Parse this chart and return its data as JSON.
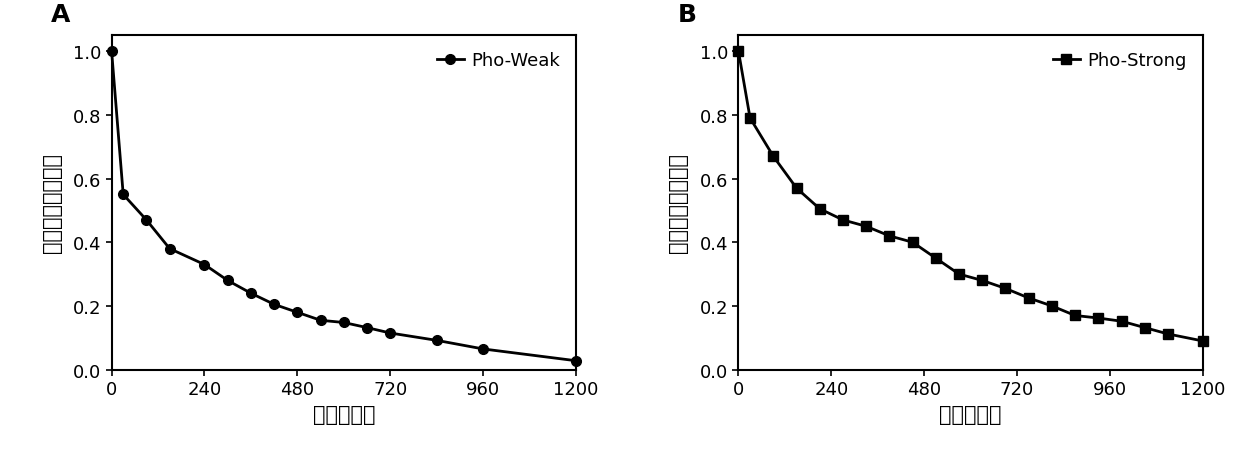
{
  "panel_A": {
    "label": "A",
    "legend": "Pho-Weak",
    "x": [
      0,
      30,
      90,
      150,
      240,
      300,
      360,
      420,
      480,
      540,
      600,
      660,
      720,
      840,
      960,
      1200
    ],
    "y": [
      1.0,
      0.55,
      0.47,
      0.38,
      0.33,
      0.28,
      0.24,
      0.205,
      0.18,
      0.155,
      0.148,
      0.132,
      0.115,
      0.092,
      0.065,
      0.028
    ],
    "marker": "o"
  },
  "panel_B": {
    "label": "B",
    "legend": "Pho-Strong",
    "x": [
      0,
      30,
      90,
      150,
      210,
      270,
      330,
      390,
      450,
      510,
      570,
      630,
      690,
      750,
      810,
      870,
      930,
      990,
      1050,
      1110,
      1200
    ],
    "y": [
      1.0,
      0.79,
      0.67,
      0.57,
      0.505,
      0.47,
      0.45,
      0.42,
      0.4,
      0.35,
      0.3,
      0.28,
      0.255,
      0.225,
      0.2,
      0.17,
      0.162,
      0.152,
      0.132,
      0.112,
      0.09
    ],
    "marker": "s"
  },
  "xlabel": "时间（秒）",
  "ylabel": "归一化的荧光强度",
  "xlim": [
    0,
    1200
  ],
  "ylim": [
    0.0,
    1.05
  ],
  "xticks": [
    0,
    240,
    480,
    720,
    960,
    1200
  ],
  "yticks": [
    0.0,
    0.2,
    0.4,
    0.6,
    0.8,
    1.0
  ],
  "line_color": "#000000",
  "marker_size": 7,
  "line_width": 2.0,
  "label_fontsize": 15,
  "tick_fontsize": 13,
  "panel_label_fontsize": 18,
  "legend_fontsize": 13,
  "background_color": "#ffffff"
}
